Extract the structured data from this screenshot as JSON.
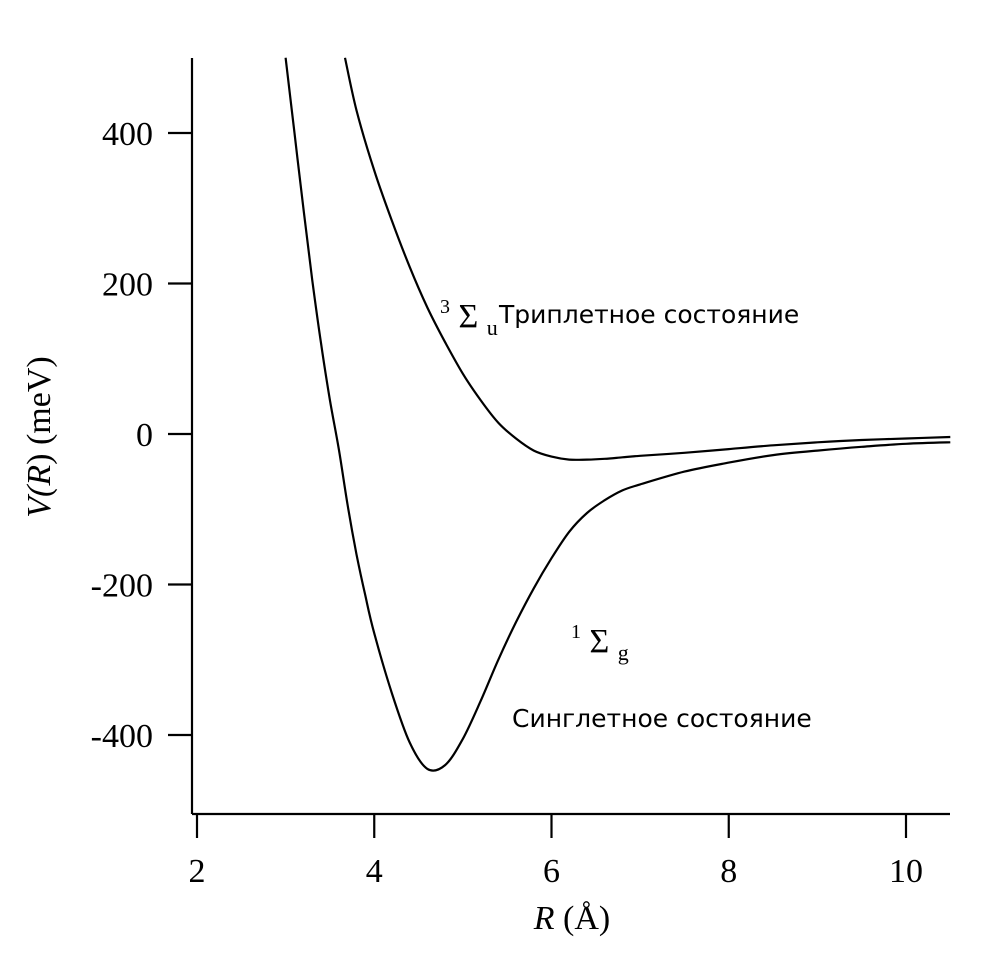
{
  "chart_data": {
    "type": "line",
    "xlabel": {
      "var": "R",
      "unit": "(Å)"
    },
    "ylabel": {
      "var": "V(R)",
      "open": "V(",
      "inner": "R",
      "close": ")",
      "unit": "(meV)"
    },
    "xlim": [
      2,
      10.5
    ],
    "ylim": [
      -500,
      500
    ],
    "xticks": [
      2,
      4,
      6,
      8,
      10
    ],
    "yticks": [
      400,
      200,
      0,
      -200,
      -400
    ],
    "grid": false,
    "series": [
      {
        "name": "³Σu Триплетное состояние",
        "x": [
          3.67,
          3.8,
          4.0,
          4.2,
          4.4,
          4.6,
          4.8,
          5.0,
          5.2,
          5.4,
          5.6,
          5.8,
          6.0,
          6.2,
          6.4,
          6.6,
          6.8,
          7.0,
          7.5,
          8.0,
          8.5,
          9.0,
          9.5,
          10.0,
          10.5
        ],
        "values": [
          500,
          430,
          350,
          283,
          222,
          168,
          122,
          80,
          45,
          15,
          -6,
          -22,
          -30,
          -34,
          -34,
          -33,
          -31,
          -29,
          -25,
          -20,
          -15,
          -11,
          -8,
          -6,
          -4
        ]
      },
      {
        "name": "¹Σg Синглетное состояние",
        "x": [
          3.0,
          3.1,
          3.2,
          3.3,
          3.4,
          3.5,
          3.6,
          3.7,
          3.8,
          3.9,
          4.0,
          4.2,
          4.4,
          4.6,
          4.8,
          5.0,
          5.2,
          5.4,
          5.6,
          5.8,
          6.0,
          6.2,
          6.4,
          6.6,
          6.8,
          7.0,
          7.5,
          8.0,
          8.5,
          9.0,
          9.5,
          10.0,
          10.5
        ],
        "values": [
          500,
          400,
          300,
          205,
          120,
          45,
          -20,
          -95,
          -160,
          -215,
          -265,
          -345,
          -410,
          -445,
          -440,
          -405,
          -355,
          -300,
          -250,
          -205,
          -165,
          -130,
          -105,
          -88,
          -75,
          -67,
          -50,
          -38,
          -28,
          -22,
          -17,
          -13,
          -11
        ]
      }
    ],
    "annotations": [
      {
        "sup": "3",
        "sym": "Σ",
        "sub": "u",
        "text": "Триплетное состояние"
      },
      {
        "sup": "1",
        "sym": "Σ",
        "sub": "g"
      },
      {
        "text": "Синглетное состояние"
      }
    ]
  }
}
